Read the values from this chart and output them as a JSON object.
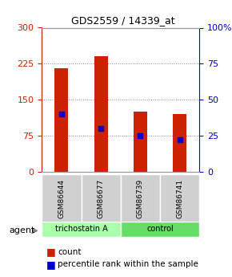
{
  "title": "GDS2559 / 14339_at",
  "samples": [
    "GSM86644",
    "GSM86677",
    "GSM86739",
    "GSM86741"
  ],
  "counts": [
    215,
    240,
    125,
    120
  ],
  "percentile_ranks": [
    40,
    30,
    25,
    22
  ],
  "ylim_left": [
    0,
    300
  ],
  "ylim_right": [
    0,
    100
  ],
  "yticks_left": [
    0,
    75,
    150,
    225,
    300
  ],
  "yticks_right": [
    0,
    25,
    50,
    75,
    100
  ],
  "bar_color": "#cc2200",
  "dot_color": "#0000cc",
  "agent_groups": [
    {
      "label": "trichostatin A",
      "samples": [
        0,
        1
      ],
      "color": "#aaffaa"
    },
    {
      "label": "control",
      "samples": [
        2,
        3
      ],
      "color": "#66dd66"
    }
  ],
  "legend_count_color": "#cc2200",
  "legend_dot_color": "#0000cc",
  "xlabel_color_left": "#cc2200",
  "xlabel_color_right": "#0000cc",
  "grid_color": "#888888",
  "bg_color": "#ffffff",
  "plot_bg": "#ffffff",
  "bar_width": 0.35
}
